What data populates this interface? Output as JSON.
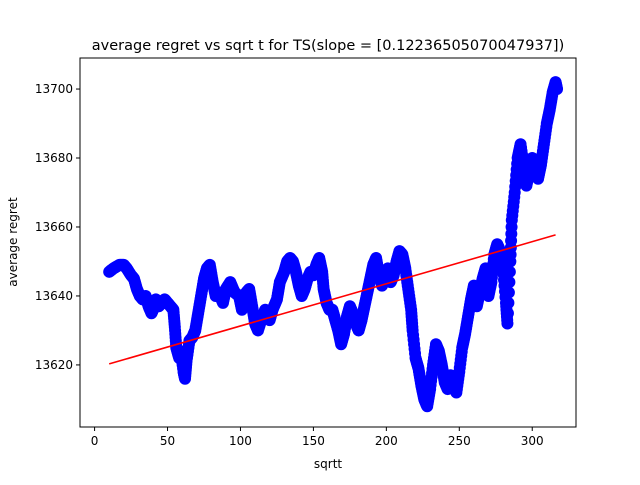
{
  "chart_data": {
    "type": "scatter",
    "title": "average regret vs sqrt t for TS(slope = [0.12236505070047937])",
    "xlabel": "sqrtt",
    "ylabel": "average regret",
    "xlim": [
      -10,
      330
    ],
    "ylim": [
      13602,
      13709
    ],
    "xticks": [
      0,
      50,
      100,
      150,
      200,
      250,
      300
    ],
    "yticks": [
      13620,
      13640,
      13660,
      13680,
      13700
    ],
    "grid": false,
    "legend": "none",
    "series": [
      {
        "kind": "scatter",
        "color": "#0000ff",
        "points": [
          [
            10,
            13647
          ],
          [
            13,
            13648
          ],
          [
            17,
            13649
          ],
          [
            20,
            13649
          ],
          [
            22,
            13648
          ],
          [
            25,
            13646
          ],
          [
            27,
            13645
          ],
          [
            29,
            13642
          ],
          [
            31,
            13640
          ],
          [
            33,
            13639
          ],
          [
            35,
            13640
          ],
          [
            37,
            13637
          ],
          [
            39,
            13635
          ],
          [
            40,
            13636
          ],
          [
            42,
            13639
          ],
          [
            44,
            13637
          ],
          [
            46,
            13638
          ],
          [
            48,
            13639
          ],
          [
            50,
            13638
          ],
          [
            52,
            13637
          ],
          [
            54,
            13636
          ],
          [
            55,
            13631
          ],
          [
            56,
            13625
          ],
          [
            58,
            13622
          ],
          [
            59,
            13624
          ],
          [
            61,
            13618
          ],
          [
            62,
            13616
          ],
          [
            63,
            13621
          ],
          [
            65,
            13627
          ],
          [
            67,
            13628
          ],
          [
            69,
            13630
          ],
          [
            71,
            13635
          ],
          [
            73,
            13640
          ],
          [
            75,
            13645
          ],
          [
            77,
            13648
          ],
          [
            79,
            13649
          ],
          [
            81,
            13644
          ],
          [
            83,
            13640
          ],
          [
            85,
            13641
          ],
          [
            88,
            13638
          ],
          [
            90,
            13642
          ],
          [
            93,
            13644
          ],
          [
            96,
            13641
          ],
          [
            99,
            13640
          ],
          [
            101,
            13636
          ],
          [
            104,
            13641
          ],
          [
            106,
            13642
          ],
          [
            108,
            13637
          ],
          [
            110,
            13632
          ],
          [
            112,
            13630
          ],
          [
            115,
            13634
          ],
          [
            117,
            13636
          ],
          [
            120,
            13633
          ],
          [
            122,
            13636
          ],
          [
            125,
            13639
          ],
          [
            127,
            13644
          ],
          [
            130,
            13647
          ],
          [
            132,
            13650
          ],
          [
            134,
            13651
          ],
          [
            136,
            13650
          ],
          [
            138,
            13647
          ],
          [
            140,
            13643
          ],
          [
            142,
            13640
          ],
          [
            144,
            13642
          ],
          [
            146,
            13645
          ],
          [
            148,
            13647
          ],
          [
            150,
            13646
          ],
          [
            152,
            13649
          ],
          [
            154,
            13651
          ],
          [
            156,
            13647
          ],
          [
            157,
            13642
          ],
          [
            159,
            13638
          ],
          [
            161,
            13636
          ],
          [
            163,
            13636
          ],
          [
            165,
            13633
          ],
          [
            167,
            13630
          ],
          [
            169,
            13626
          ],
          [
            171,
            13629
          ],
          [
            173,
            13634
          ],
          [
            175,
            13637
          ],
          [
            177,
            13635
          ],
          [
            179,
            13632
          ],
          [
            181,
            13630
          ],
          [
            183,
            13633
          ],
          [
            185,
            13637
          ],
          [
            187,
            13641
          ],
          [
            189,
            13645
          ],
          [
            191,
            13649
          ],
          [
            193,
            13651
          ],
          [
            195,
            13646
          ],
          [
            197,
            13643
          ],
          [
            199,
            13645
          ],
          [
            201,
            13648
          ],
          [
            203,
            13644
          ],
          [
            205,
            13646
          ],
          [
            207,
            13650
          ],
          [
            209,
            13653
          ],
          [
            211,
            13652
          ],
          [
            213,
            13648
          ],
          [
            215,
            13642
          ],
          [
            217,
            13636
          ],
          [
            218,
            13630
          ],
          [
            220,
            13622
          ],
          [
            222,
            13619
          ],
          [
            224,
            13614
          ],
          [
            226,
            13610
          ],
          [
            228,
            13608
          ],
          [
            230,
            13613
          ],
          [
            232,
            13620
          ],
          [
            234,
            13626
          ],
          [
            236,
            13624
          ],
          [
            238,
            13620
          ],
          [
            240,
            13615
          ],
          [
            242,
            13613
          ],
          [
            244,
            13617
          ],
          [
            246,
            13614
          ],
          [
            248,
            13612
          ],
          [
            250,
            13618
          ],
          [
            252,
            13625
          ],
          [
            254,
            13629
          ],
          [
            256,
            13634
          ],
          [
            258,
            13639
          ],
          [
            260,
            13643
          ],
          [
            262,
            13637
          ],
          [
            264,
            13641
          ],
          [
            266,
            13645
          ],
          [
            268,
            13648
          ],
          [
            270,
            13640
          ],
          [
            272,
            13644
          ],
          [
            274,
            13652
          ],
          [
            276,
            13655
          ],
          [
            278,
            13653
          ],
          [
            280,
            13648
          ],
          [
            282,
            13638
          ],
          [
            283,
            13632
          ],
          [
            285,
            13650
          ],
          [
            286,
            13662
          ],
          [
            288,
            13670
          ],
          [
            290,
            13680
          ],
          [
            292,
            13684
          ],
          [
            294,
            13678
          ],
          [
            296,
            13672
          ],
          [
            298,
            13676
          ],
          [
            300,
            13680
          ],
          [
            302,
            13678
          ],
          [
            304,
            13674
          ],
          [
            306,
            13678
          ],
          [
            308,
            13684
          ],
          [
            310,
            13690
          ],
          [
            312,
            13694
          ],
          [
            314,
            13699
          ],
          [
            316,
            13702
          ],
          [
            317,
            13700
          ]
        ]
      },
      {
        "kind": "line",
        "color": "#ff0000",
        "x": [
          10,
          316
        ],
        "y": [
          13620.3,
          13657.7
        ]
      }
    ]
  }
}
